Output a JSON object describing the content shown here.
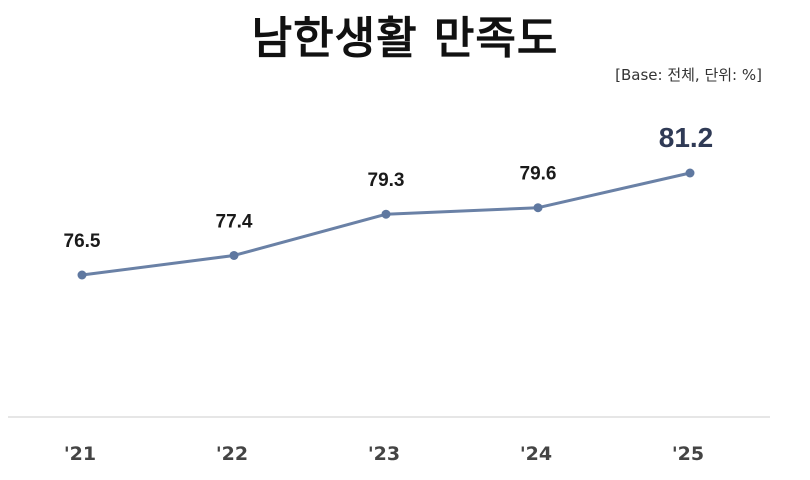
{
  "header": {
    "title": "남한생활 만족도",
    "subtitle": "[Base: 전체, 단위: %]"
  },
  "colors": {
    "line": "#6a81a6",
    "point": "#5f78a0",
    "highlight_label": "#2f3a55",
    "label": "#1a1a1a",
    "baseline": "#e6e6e6"
  },
  "chart_data": {
    "type": "line",
    "title": "남한생활 만족도",
    "subtitle": "[Base: 전체, 단위: %]",
    "categories": [
      "'21",
      "'22",
      "'23",
      "'24",
      "'25"
    ],
    "series": [
      {
        "name": "남한생활 만족도",
        "values": [
          76.5,
          77.4,
          79.3,
          79.6,
          81.2
        ]
      }
    ],
    "data_labels": [
      "76.5",
      "77.4",
      "79.3",
      "79.6",
      "81.2"
    ],
    "highlighted_index": 4,
    "xlabel": "",
    "ylabel": "",
    "unit": "%",
    "grid": false,
    "legend": "none"
  }
}
